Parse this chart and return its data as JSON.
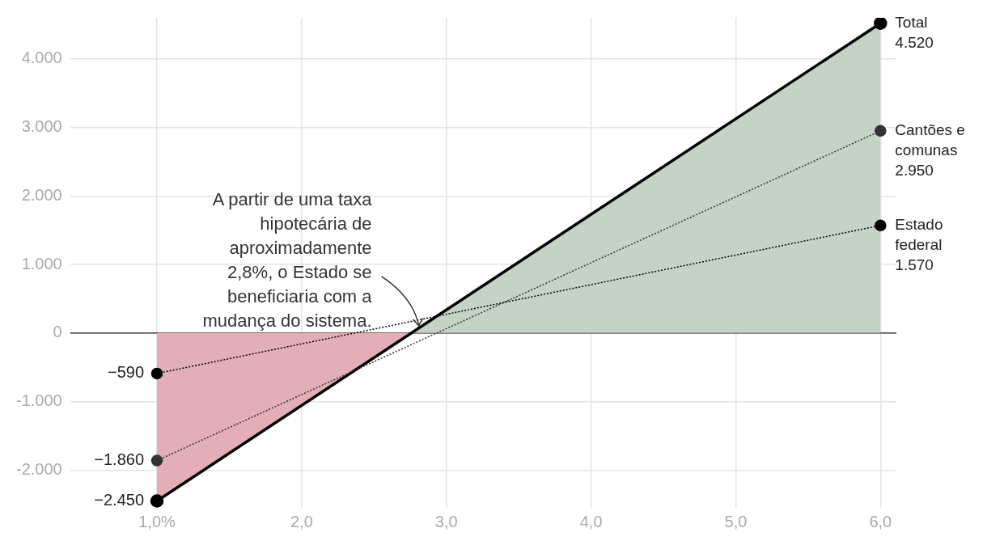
{
  "chart_data": {
    "type": "line",
    "x": [
      1,
      6
    ],
    "xlim": [
      0.4,
      6.11
    ],
    "ylim": [
      -2550,
      4600
    ],
    "xticks": [
      {
        "value": 1,
        "label": "1,0%"
      },
      {
        "value": 2,
        "label": "2,0"
      },
      {
        "value": 3,
        "label": "3,0"
      },
      {
        "value": 4,
        "label": "4,0"
      },
      {
        "value": 5,
        "label": "5,0"
      },
      {
        "value": 6,
        "label": "6,0"
      }
    ],
    "yticks": [
      {
        "value": -2000,
        "label": "-2.000"
      },
      {
        "value": -1000,
        "label": "-1.000"
      },
      0,
      {
        "value": 1000,
        "label": "1.000"
      },
      {
        "value": 2000,
        "label": "2.000"
      },
      {
        "value": 3000,
        "label": "3.000"
      },
      {
        "value": 4000,
        "label": "4.000"
      }
    ],
    "series": [
      {
        "name": "Total",
        "type": "area",
        "color": "#000000",
        "colors": [
          "#e3aeb8",
          "#c5d3c7"
        ],
        "line_style": "solid",
        "values": [
          -2450,
          4520
        ],
        "value_labels": [
          "−2.450",
          "4.520"
        ]
      },
      {
        "name": "Cantões e comunas",
        "type": "line",
        "color": "#333333",
        "line_style": "dotted",
        "values": [
          -1860,
          2950
        ],
        "value_labels": [
          "−1.860",
          "2.950"
        ]
      },
      {
        "name": "Estado federal",
        "type": "line",
        "color": "#000000",
        "line_style": "dotted",
        "values": [
          -590,
          1570
        ],
        "value_labels": [
          "−590",
          "1.570"
        ]
      }
    ],
    "ref_lines": [
      {
        "axis": "y",
        "value": 0,
        "color": "#222222"
      }
    ],
    "annotations": [
      {
        "text": "A partir de uma taxa hipotecária de aproximadamente 2,8%, o Estado se beneficiaria com a mudança do sistema.",
        "x": 2.82,
        "y": 0
      }
    ],
    "grid": true,
    "legend": false,
    "marker": "circle"
  }
}
